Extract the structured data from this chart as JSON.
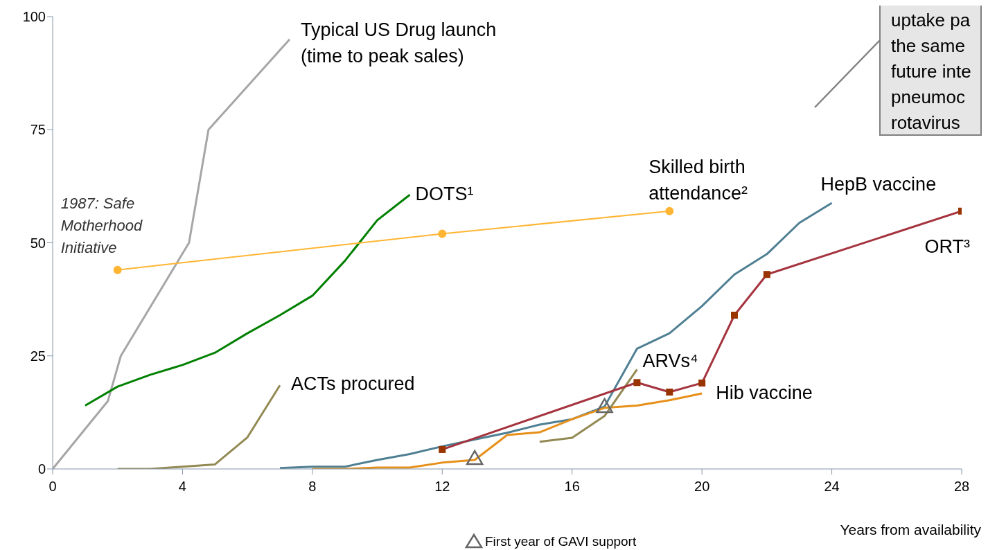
{
  "chart_data": {
    "type": "line",
    "xlabel": "Years from availability",
    "xlim": [
      0,
      28
    ],
    "xticks": [
      0,
      4,
      8,
      12,
      16,
      20,
      24,
      28
    ],
    "ylim": [
      0,
      100
    ],
    "yticks": [
      0,
      25,
      50,
      75,
      100
    ],
    "grid": false,
    "legend": "bottom",
    "line_style": "solid",
    "series": [
      {
        "name": "Typical US Drug launch\n(time to peak sales)",
        "color": "#a6a6a6",
        "marker": "none",
        "x": [
          0,
          1.7,
          2.1,
          4.2,
          4.8,
          7.3
        ],
        "values": [
          0,
          15,
          25,
          50,
          75,
          95
        ]
      },
      {
        "name": "DOTS¹",
        "color": "#008000",
        "marker": "none",
        "x": [
          1,
          2,
          3,
          4,
          5,
          6,
          7,
          8,
          9,
          10,
          11
        ],
        "values": [
          14,
          18.2,
          20.8,
          23,
          25.7,
          30,
          34,
          38.3,
          46,
          55,
          60.6
        ]
      },
      {
        "name": "Skilled birth\nattendance²",
        "color": "#ffb533",
        "marker": "circle",
        "x": [
          2,
          12,
          19
        ],
        "values": [
          44,
          52,
          57
        ]
      },
      {
        "name": "ACTs procured",
        "color": "#938953",
        "marker": "none",
        "x": [
          2,
          3,
          4,
          5,
          6,
          7
        ],
        "values": [
          0,
          0,
          0.5,
          1,
          7,
          18.5
        ]
      },
      {
        "name": "HepB vaccine",
        "color": "#4f7f93",
        "marker": "none",
        "x": [
          7,
          8,
          9,
          10,
          11,
          12,
          13,
          14,
          15,
          16,
          17,
          18,
          19,
          20,
          21,
          22,
          23,
          24
        ],
        "values": [
          0.2,
          0.5,
          0.5,
          2,
          3.3,
          5,
          6.5,
          8,
          9.8,
          11,
          13.8,
          26.6,
          30,
          36,
          43,
          47.5,
          54.4,
          58.8
        ]
      },
      {
        "name": "Hib vaccine",
        "color": "#e6901a",
        "marker": "none",
        "x": [
          8,
          9,
          10,
          11,
          12,
          13,
          14,
          15,
          16,
          17,
          18,
          19,
          20
        ],
        "values": [
          0,
          0,
          0.3,
          0.3,
          1.4,
          2,
          7.5,
          8.1,
          11,
          13.5,
          14,
          15.2,
          16.7
        ]
      },
      {
        "name": "ARVs⁴",
        "color": "#938953",
        "marker": "none",
        "x": [
          15,
          16,
          17,
          18
        ],
        "values": [
          6,
          6.9,
          11.7,
          22
        ]
      },
      {
        "name": "ORT³",
        "color": "#a5343f",
        "marker": "square",
        "x": [
          12,
          18,
          19,
          20,
          21,
          22,
          28
        ],
        "values": [
          4.3,
          19.1,
          17,
          19,
          34,
          43,
          57
        ]
      },
      {
        "type": "scatter",
        "name": "First year of GAVI support",
        "color": "#666666",
        "marker": "triangle",
        "x": [
          13,
          17
        ],
        "values": [
          2.3,
          13.8
        ]
      }
    ],
    "annotations": [
      {
        "text": "1987: Safe\nMotherhood\nInitiative",
        "x": 2,
        "y": 44
      },
      "uptake pa\nthe same\nfuture inte\npneumoc\nrotavirus"
    ]
  }
}
